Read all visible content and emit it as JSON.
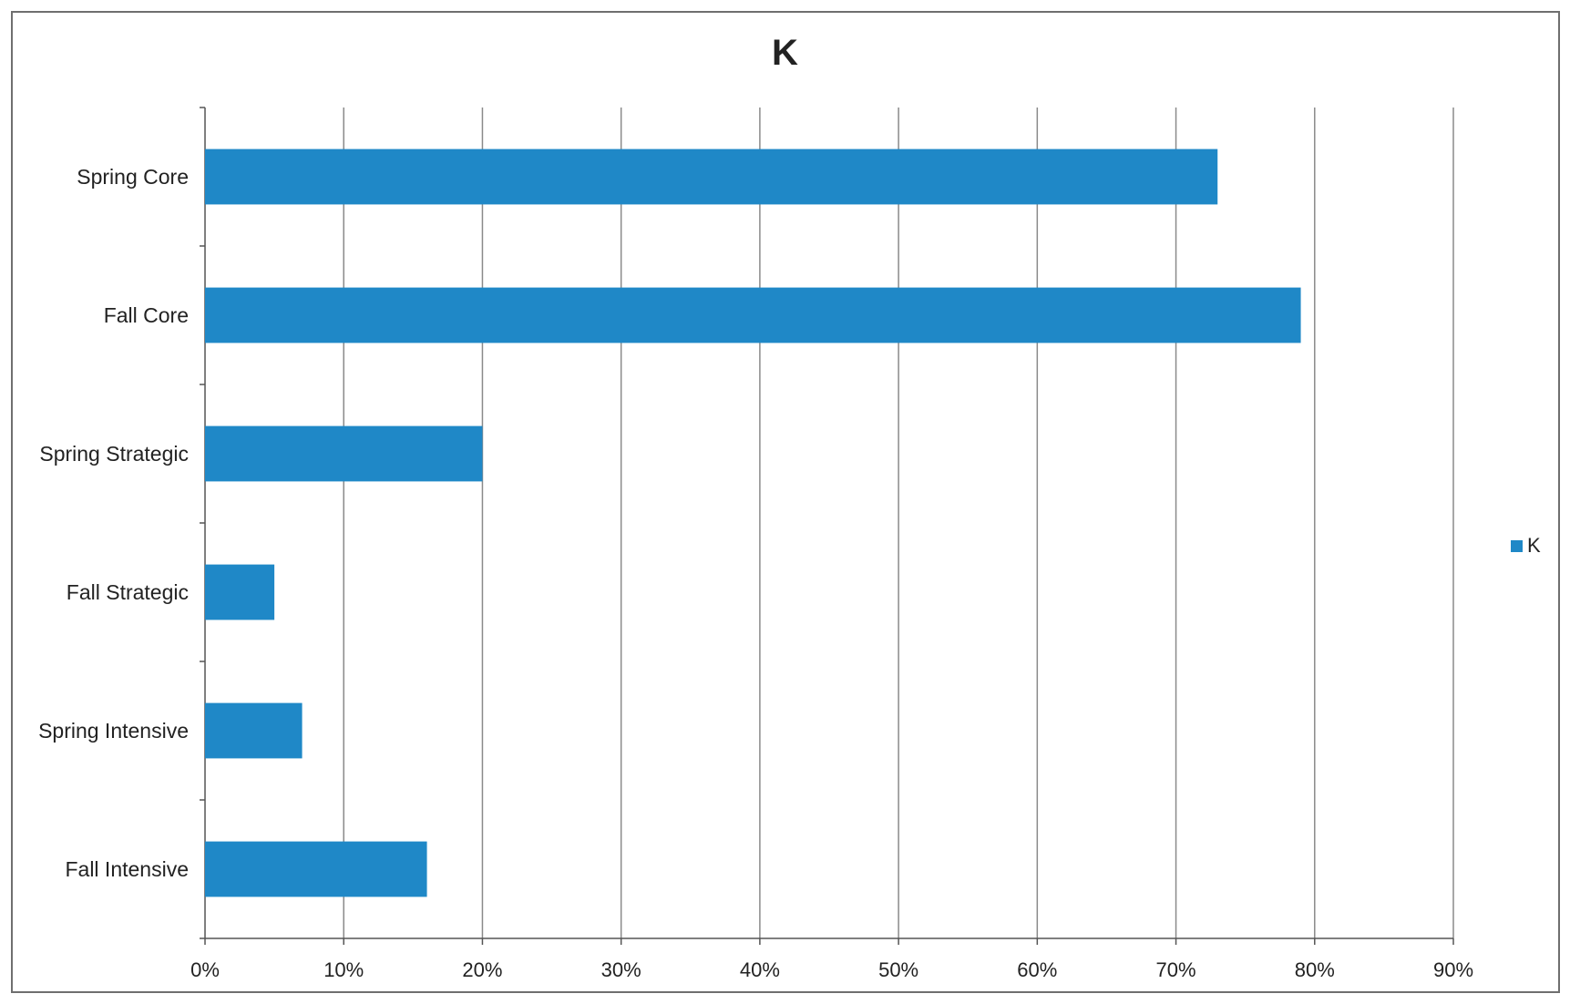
{
  "chart_data": {
    "type": "bar",
    "orientation": "horizontal",
    "title": "K",
    "xlabel": "",
    "ylabel": "",
    "categories": [
      "Spring Core",
      "Fall Core",
      "Spring Strategic",
      "Fall Strategic",
      "Spring Intensive",
      "Fall Intensive"
    ],
    "series": [
      {
        "name": "K",
        "values": [
          73,
          79,
          20,
          5,
          7,
          16
        ],
        "color": "#1f88c7"
      }
    ],
    "xlim": [
      0,
      90
    ],
    "x_ticks": [
      0,
      10,
      20,
      30,
      40,
      50,
      60,
      70,
      80,
      90
    ],
    "x_tick_labels": [
      "0%",
      "10%",
      "20%",
      "30%",
      "40%",
      "50%",
      "60%",
      "70%",
      "80%",
      "90%"
    ],
    "grid": "vertical",
    "legend_position": "right"
  }
}
